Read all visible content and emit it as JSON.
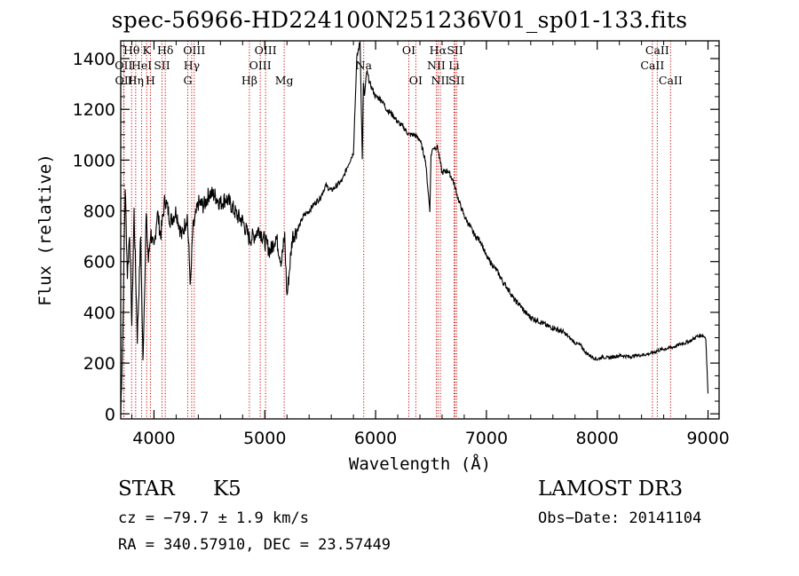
{
  "title": "spec-56966-HD224100N251236V01_sp01-133.fits",
  "info": {
    "class_label": "STAR",
    "subclass": "K5",
    "survey": "LAMOST DR3",
    "cz": "cz = −79.7 ± 1.9 km/s",
    "obs_date": "Obs−Date: 20141104",
    "radec": "RA = 340.57910, DEC =  23.57449"
  },
  "chart_data": {
    "type": "line",
    "title": "spec-56966-HD224100N251236V01_sp01-133.fits",
    "xlabel": "Wavelength (Å)",
    "ylabel": "Flux (relative)",
    "xlim": [
      3700,
      9100
    ],
    "ylim": [
      -20,
      1470
    ],
    "xticks": [
      4000,
      5000,
      6000,
      7000,
      8000,
      9000
    ],
    "yticks": [
      0,
      200,
      400,
      600,
      800,
      1000,
      1200,
      1400
    ],
    "spectrum": {
      "x": [
        3700,
        3720,
        3740,
        3760,
        3780,
        3800,
        3820,
        3850,
        3880,
        3900,
        3930,
        3950,
        3970,
        4000,
        4030,
        4060,
        4100,
        4150,
        4200,
        4250,
        4300,
        4330,
        4350,
        4400,
        4450,
        4500,
        4550,
        4600,
        4650,
        4700,
        4750,
        4800,
        4860,
        4900,
        4950,
        5000,
        5050,
        5100,
        5150,
        5180,
        5200,
        5250,
        5300,
        5350,
        5400,
        5450,
        5500,
        5550,
        5600,
        5650,
        5700,
        5750,
        5800,
        5830,
        5860,
        5880,
        5890,
        5900,
        5920,
        5950,
        6000,
        6050,
        6100,
        6150,
        6200,
        6250,
        6300,
        6350,
        6400,
        6450,
        6490,
        6500,
        6520,
        6560,
        6600,
        6650,
        6700,
        6750,
        6800,
        6850,
        6900,
        6950,
        7000,
        7050,
        7100,
        7150,
        7200,
        7250,
        7300,
        7350,
        7400,
        7450,
        7500,
        7550,
        7600,
        7650,
        7700,
        7750,
        7800,
        7850,
        7900,
        7950,
        8000,
        8050,
        8100,
        8150,
        8200,
        8250,
        8300,
        8350,
        8400,
        8450,
        8500,
        8550,
        8600,
        8650,
        8700,
        8750,
        8800,
        8850,
        8900,
        8950,
        8980,
        9000
      ],
      "y": [
        0,
        350,
        900,
        550,
        720,
        350,
        800,
        300,
        700,
        200,
        780,
        600,
        720,
        640,
        800,
        700,
        850,
        760,
        800,
        700,
        780,
        500,
        720,
        830,
        820,
        870,
        860,
        830,
        850,
        820,
        780,
        760,
        690,
        700,
        730,
        680,
        640,
        700,
        600,
        700,
        460,
        700,
        730,
        780,
        800,
        830,
        850,
        900,
        880,
        900,
        920,
        980,
        1030,
        1400,
        1470,
        1000,
        1300,
        1250,
        1350,
        1300,
        1250,
        1240,
        1200,
        1180,
        1150,
        1130,
        1100,
        1100,
        1080,
        1000,
        800,
        1020,
        1050,
        1050,
        950,
        960,
        920,
        840,
        780,
        740,
        700,
        680,
        620,
        590,
        560,
        520,
        490,
        450,
        430,
        400,
        380,
        370,
        360,
        345,
        340,
        330,
        320,
        300,
        280,
        270,
        240,
        225,
        215,
        225,
        220,
        225,
        230,
        228,
        225,
        230,
        232,
        235,
        240,
        250,
        255,
        260,
        265,
        275,
        280,
        290,
        305,
        310,
        300,
        80
      ]
    },
    "lines": [
      {
        "label": "Hθ",
        "wave": 3798,
        "row": 1
      },
      {
        "label": "OII",
        "wave": 3727,
        "row": 2
      },
      {
        "label": "OII",
        "wave": 3729,
        "row": 3
      },
      {
        "label": "K",
        "wave": 3934,
        "row": 1
      },
      {
        "label": "H",
        "wave": 3968,
        "row": 3
      },
      {
        "label": "Hη",
        "wave": 3835,
        "row": 3
      },
      {
        "label": "HeI",
        "wave": 3889,
        "row": 2
      },
      {
        "label": "SII",
        "wave": 4072,
        "row": 2
      },
      {
        "label": "Hδ",
        "wave": 4102,
        "row": 1
      },
      {
        "label": "Hγ",
        "wave": 4340,
        "row": 2
      },
      {
        "label": "G",
        "wave": 4305,
        "row": 3
      },
      {
        "label": "OIII",
        "wave": 4363,
        "row": 1
      },
      {
        "label": "Hβ",
        "wave": 4861,
        "row": 3
      },
      {
        "label": "OIII",
        "wave": 5007,
        "row": 1
      },
      {
        "label": "OIII",
        "wave": 4959,
        "row": 2
      },
      {
        "label": "Mg",
        "wave": 5175,
        "row": 3
      },
      {
        "label": "Na",
        "wave": 5893,
        "row": 2
      },
      {
        "label": "OI",
        "wave": 6300,
        "row": 1
      },
      {
        "label": "OI",
        "wave": 6363,
        "row": 3
      },
      {
        "label": "Hα",
        "wave": 6563,
        "row": 1
      },
      {
        "label": "NII",
        "wave": 6548,
        "row": 2
      },
      {
        "label": "NII",
        "wave": 6584,
        "row": 3
      },
      {
        "label": "SII",
        "wave": 6717,
        "row": 1
      },
      {
        "label": "Li",
        "wave": 6708,
        "row": 2
      },
      {
        "label": "SII",
        "wave": 6731,
        "row": 3
      },
      {
        "label": "CaII",
        "wave": 8542,
        "row": 1
      },
      {
        "label": "CaII",
        "wave": 8498,
        "row": 2
      },
      {
        "label": "CaII",
        "wave": 8662,
        "row": 3
      }
    ],
    "line_color": "#cc0000",
    "grid": false
  }
}
